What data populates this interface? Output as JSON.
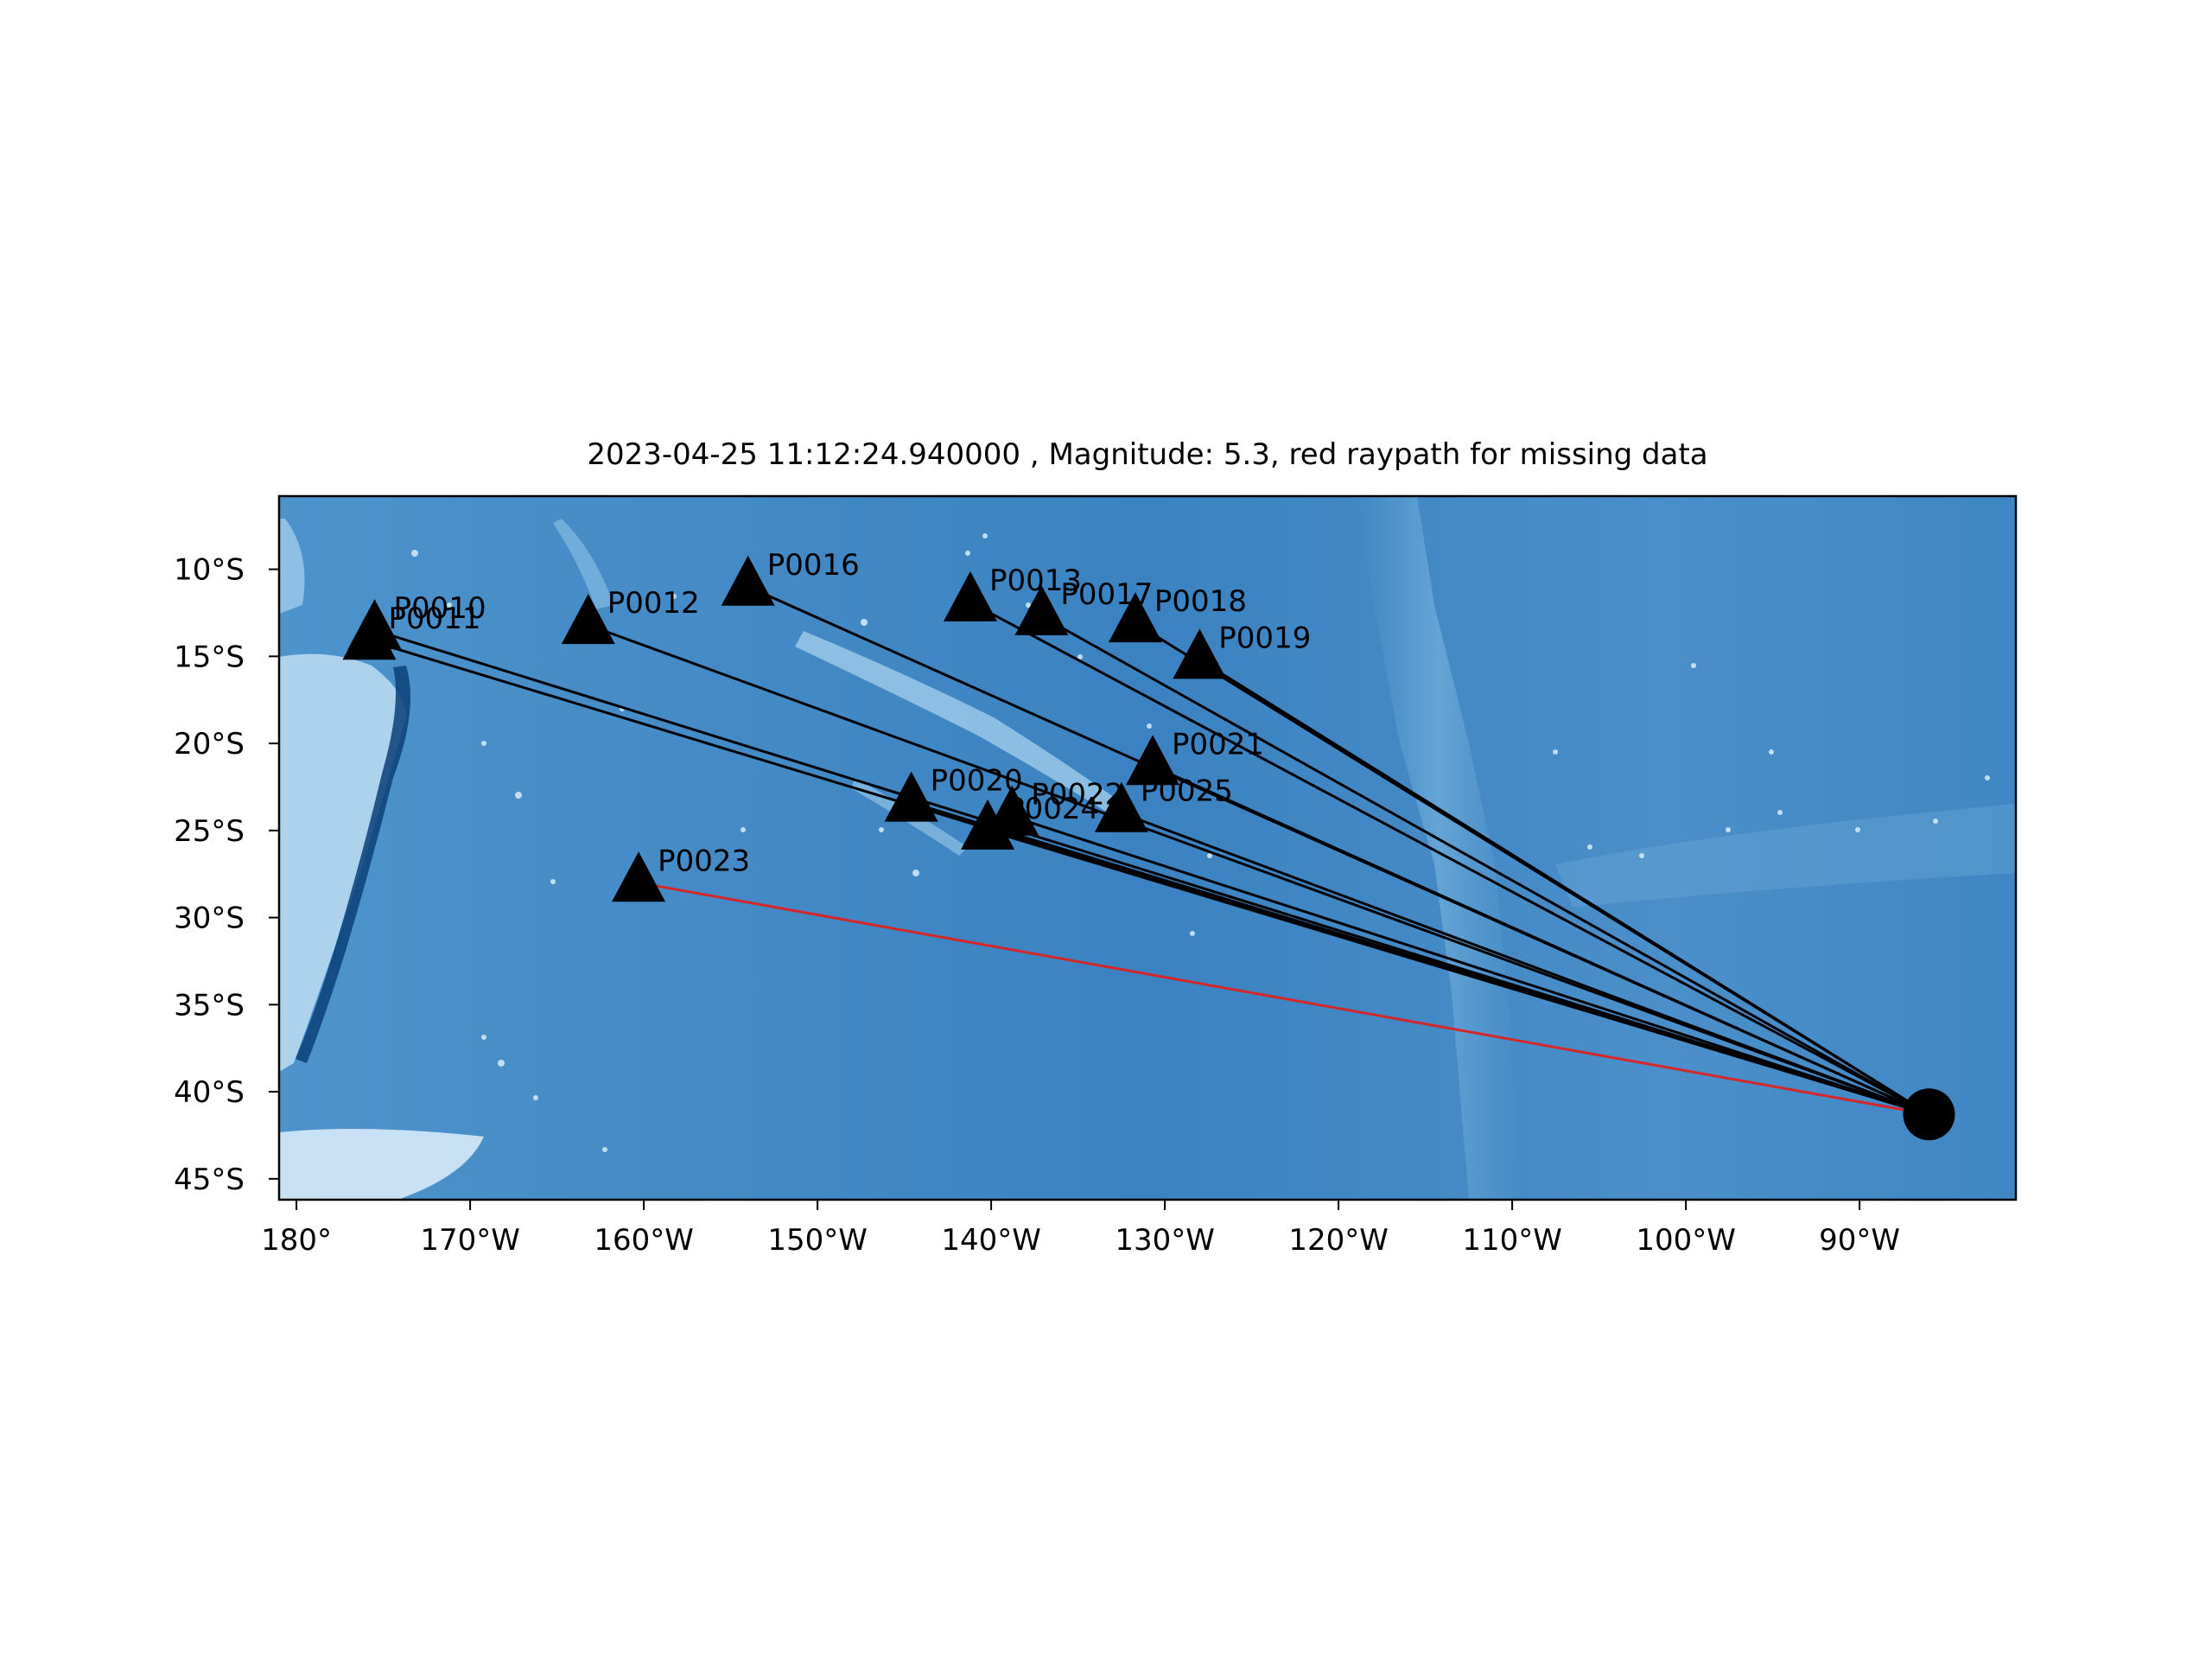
{
  "title": "2023-04-25 11:12:24.940000 , Magnitude: 5.3, red raypath for missing data",
  "map": {
    "lon_range": [
      -181.0,
      -81.0
    ],
    "lat_range": [
      -46.2,
      -5.8
    ],
    "ocean_color": "#3f87c4",
    "shallow_color": "#bcdcf0",
    "trench_color": "#0b3f7a",
    "frame_color": "#000000"
  },
  "x_ticks": [
    {
      "value": -180,
      "label": "180°"
    },
    {
      "value": -170,
      "label": "170°W"
    },
    {
      "value": -160,
      "label": "160°W"
    },
    {
      "value": -150,
      "label": "150°W"
    },
    {
      "value": -140,
      "label": "140°W"
    },
    {
      "value": -130,
      "label": "130°W"
    },
    {
      "value": -120,
      "label": "120°W"
    },
    {
      "value": -110,
      "label": "110°W"
    },
    {
      "value": -100,
      "label": "100°W"
    },
    {
      "value": -90,
      "label": "90°W"
    }
  ],
  "y_ticks": [
    {
      "value": -10,
      "label": "10°S"
    },
    {
      "value": -15,
      "label": "15°S"
    },
    {
      "value": -20,
      "label": "20°S"
    },
    {
      "value": -25,
      "label": "25°S"
    },
    {
      "value": -30,
      "label": "30°S"
    },
    {
      "value": -35,
      "label": "35°S"
    },
    {
      "value": -40,
      "label": "40°S"
    },
    {
      "value": -45,
      "label": "45°S"
    }
  ],
  "event": {
    "lon": -86.0,
    "lat": -41.3,
    "marker": "circle",
    "color": "#000000"
  },
  "raypath_colors": {
    "ok": "#000000",
    "missing": "#d62728"
  },
  "stations": [
    {
      "name": "P0010",
      "lon": -175.5,
      "lat": -13.5,
      "missing": false
    },
    {
      "name": "P0011",
      "lon": -175.8,
      "lat": -14.1,
      "missing": false
    },
    {
      "name": "P0012",
      "lon": -163.2,
      "lat": -13.2,
      "missing": false
    },
    {
      "name": "P0016",
      "lon": -154.0,
      "lat": -11.0,
      "missing": false
    },
    {
      "name": "P0013",
      "lon": -141.2,
      "lat": -11.9,
      "missing": false
    },
    {
      "name": "P0017",
      "lon": -137.1,
      "lat": -12.7,
      "missing": false
    },
    {
      "name": "P0018",
      "lon": -131.7,
      "lat": -13.1,
      "missing": false
    },
    {
      "name": "P0019",
      "lon": -128.0,
      "lat": -15.2,
      "missing": false
    },
    {
      "name": "P0021",
      "lon": -130.7,
      "lat": -21.3,
      "missing": false
    },
    {
      "name": "P0020",
      "lon": -144.6,
      "lat": -23.4,
      "missing": false
    },
    {
      "name": "P0022",
      "lon": -138.8,
      "lat": -24.2,
      "missing": false
    },
    {
      "name": "P0024",
      "lon": -140.2,
      "lat": -25.0,
      "missing": false
    },
    {
      "name": "P0025",
      "lon": -132.5,
      "lat": -24.0,
      "missing": false
    },
    {
      "name": "P0023",
      "lon": -160.3,
      "lat": -28.0,
      "missing": true
    }
  ]
}
